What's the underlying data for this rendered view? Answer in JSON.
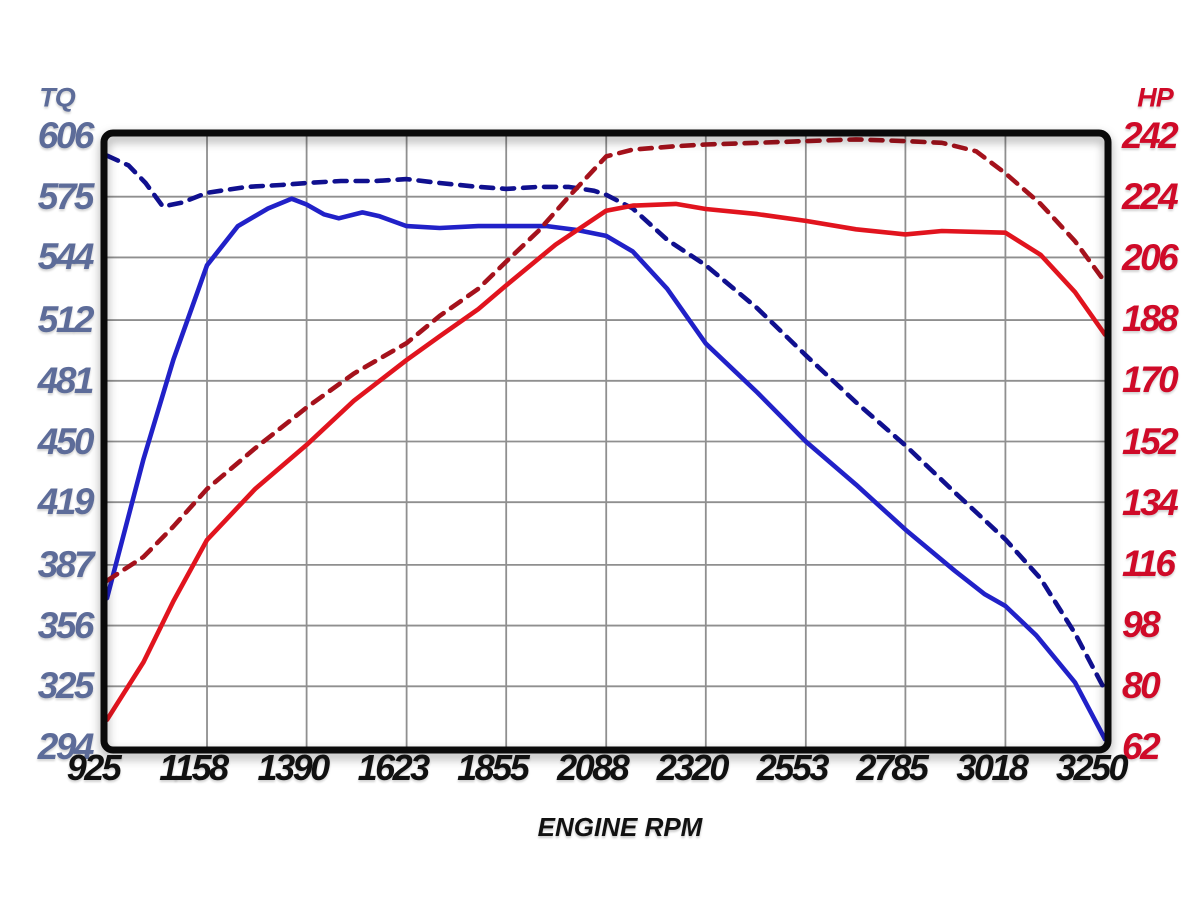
{
  "chart_data": {
    "type": "line",
    "title": "",
    "legend": "none",
    "grid": true,
    "x_axis": {
      "label": "ENGINE RPM",
      "min": 925,
      "max": 3250,
      "ticks": [
        925,
        1158,
        1390,
        1623,
        1855,
        2088,
        2320,
        2553,
        2785,
        3018,
        3250
      ]
    },
    "left_axis": {
      "label": "TQ",
      "min": 294,
      "max": 606,
      "ticks": [
        606,
        575,
        544,
        512,
        481,
        450,
        419,
        387,
        356,
        325,
        294
      ]
    },
    "right_axis": {
      "label": "HP",
      "min": 62,
      "max": 242,
      "ticks": [
        242,
        224,
        206,
        188,
        170,
        152,
        134,
        116,
        98,
        80,
        62
      ]
    },
    "series": [
      {
        "name": "torque-dashed-run",
        "axis": "left",
        "style": "dashed",
        "color": "#10108f",
        "points": [
          [
            925,
            596
          ],
          [
            975,
            591
          ],
          [
            1015,
            582
          ],
          [
            1055,
            570
          ],
          [
            1100,
            572
          ],
          [
            1158,
            577
          ],
          [
            1250,
            580
          ],
          [
            1330,
            581
          ],
          [
            1390,
            582
          ],
          [
            1470,
            583
          ],
          [
            1550,
            583
          ],
          [
            1623,
            584
          ],
          [
            1700,
            582
          ],
          [
            1790,
            580
          ],
          [
            1855,
            579
          ],
          [
            1930,
            580
          ],
          [
            2000,
            580
          ],
          [
            2060,
            578
          ],
          [
            2088,
            576
          ],
          [
            2150,
            569
          ],
          [
            2230,
            553
          ],
          [
            2320,
            540
          ],
          [
            2440,
            518
          ],
          [
            2553,
            494
          ],
          [
            2670,
            470
          ],
          [
            2785,
            448
          ],
          [
            2900,
            424
          ],
          [
            3018,
            400
          ],
          [
            3100,
            380
          ],
          [
            3180,
            352
          ],
          [
            3250,
            323
          ]
        ]
      },
      {
        "name": "torque-solid-run",
        "axis": "left",
        "style": "solid",
        "color": "#2121c8",
        "points": [
          [
            925,
            370
          ],
          [
            1010,
            441
          ],
          [
            1080,
            492
          ],
          [
            1158,
            540
          ],
          [
            1230,
            560
          ],
          [
            1300,
            569
          ],
          [
            1355,
            574
          ],
          [
            1390,
            571
          ],
          [
            1430,
            566
          ],
          [
            1465,
            564
          ],
          [
            1520,
            567
          ],
          [
            1560,
            565
          ],
          [
            1623,
            560
          ],
          [
            1700,
            559
          ],
          [
            1790,
            560
          ],
          [
            1855,
            560
          ],
          [
            1950,
            560
          ],
          [
            2020,
            558
          ],
          [
            2088,
            555
          ],
          [
            2150,
            547
          ],
          [
            2230,
            528
          ],
          [
            2320,
            500
          ],
          [
            2440,
            475
          ],
          [
            2553,
            450
          ],
          [
            2670,
            428
          ],
          [
            2785,
            405
          ],
          [
            2900,
            384
          ],
          [
            2970,
            372
          ],
          [
            3018,
            366
          ],
          [
            3090,
            351
          ],
          [
            3180,
            327
          ],
          [
            3250,
            298
          ]
        ]
      },
      {
        "name": "horsepower-dashed-run",
        "axis": "right",
        "style": "dashed",
        "color": "#a5121c",
        "points": [
          [
            925,
            111
          ],
          [
            1010,
            118
          ],
          [
            1080,
            127
          ],
          [
            1158,
            138
          ],
          [
            1270,
            150
          ],
          [
            1390,
            162
          ],
          [
            1500,
            172
          ],
          [
            1623,
            181
          ],
          [
            1700,
            189
          ],
          [
            1790,
            197
          ],
          [
            1855,
            205
          ],
          [
            1930,
            214
          ],
          [
            2000,
            224
          ],
          [
            2088,
            236
          ],
          [
            2150,
            238
          ],
          [
            2250,
            239
          ],
          [
            2320,
            239.5
          ],
          [
            2440,
            240
          ],
          [
            2553,
            240.5
          ],
          [
            2670,
            241
          ],
          [
            2785,
            240.5
          ],
          [
            2870,
            240
          ],
          [
            2950,
            237.5
          ],
          [
            3018,
            231
          ],
          [
            3100,
            222
          ],
          [
            3180,
            211
          ],
          [
            3250,
            199
          ]
        ]
      },
      {
        "name": "horsepower-solid-run",
        "axis": "right",
        "style": "solid",
        "color": "#e1141e",
        "points": [
          [
            925,
            70
          ],
          [
            1010,
            87
          ],
          [
            1080,
            105
          ],
          [
            1158,
            123
          ],
          [
            1270,
            138
          ],
          [
            1390,
            151
          ],
          [
            1500,
            164
          ],
          [
            1623,
            176
          ],
          [
            1700,
            183
          ],
          [
            1790,
            191
          ],
          [
            1855,
            198
          ],
          [
            1970,
            210
          ],
          [
            2088,
            220
          ],
          [
            2150,
            221.5
          ],
          [
            2250,
            222
          ],
          [
            2320,
            220.5
          ],
          [
            2440,
            219
          ],
          [
            2553,
            217
          ],
          [
            2670,
            214.5
          ],
          [
            2785,
            213
          ],
          [
            2870,
            214
          ],
          [
            3018,
            213.5
          ],
          [
            3100,
            207
          ],
          [
            3180,
            196
          ],
          [
            3250,
            183.5
          ]
        ]
      }
    ],
    "colors": {
      "left_axis_labels": "#5d6c99",
      "right_axis_labels": "#cf0a28",
      "x_axis_labels": "#111111",
      "grid": "#8f8f8f",
      "border": "#0a0a0a",
      "background": "#ffffff"
    }
  }
}
